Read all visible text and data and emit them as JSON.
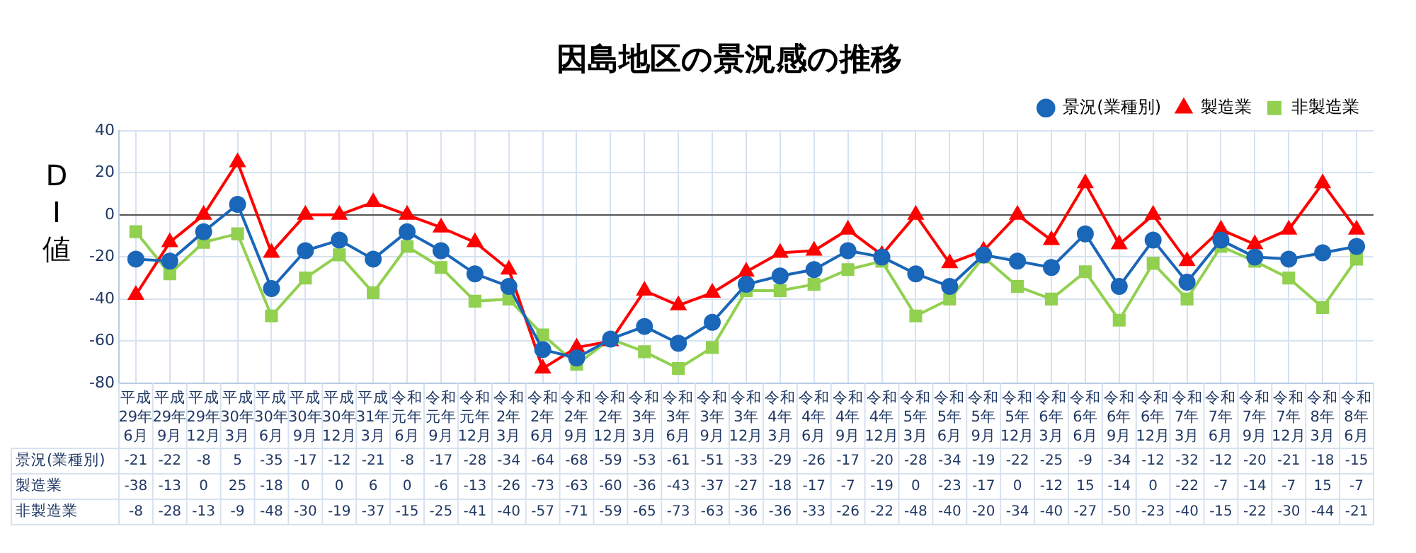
{
  "chart_data": {
    "type": "line",
    "title": "因島地区の景況感の推移",
    "ylabel": "DI値",
    "categories": [
      "平成29年6月",
      "平成29年9月",
      "平成29年12月",
      "平成30年3月",
      "平成30年6月",
      "平成30年9月",
      "平成30年12月",
      "平成31年3月",
      "令和元年6月",
      "令和元年9月",
      "令和元年12月",
      "令和2年3月",
      "令和2年6月",
      "令和2年9月",
      "令和2年12月",
      "令和3年3月",
      "令和3年6月",
      "令和3年9月",
      "令和3年12月",
      "令和4年3月",
      "令和4年6月",
      "令和4年9月",
      "令和4年12月",
      "令和5年3月",
      "令和5年6月",
      "令和5年9月",
      "令和5年12月",
      "令和6年3月",
      "令和6年6月",
      "令和6年9月",
      "令和6年12月",
      "令和7年3月",
      "令和7年6月",
      "令和7年9月",
      "令和7年12月",
      "令和8年3月",
      "令和8年6月"
    ],
    "series": [
      {
        "name": "景況(業種別)",
        "color": "#1a66b8",
        "marker": "circle",
        "values": [
          -21,
          -22,
          -8,
          5,
          -35,
          -17,
          -12,
          -21,
          -8,
          -17,
          -28,
          -34,
          -64,
          -68,
          -59,
          -53,
          -61,
          -51,
          -33,
          -29,
          -26,
          -17,
          -20,
          -28,
          -34,
          -19,
          -22,
          -25,
          -9,
          -34,
          -12,
          -32,
          -12,
          -20,
          -21,
          -18,
          -15
        ]
      },
      {
        "name": "製造業",
        "color": "#ff0000",
        "marker": "triangle",
        "values": [
          -38,
          -13,
          0,
          25,
          -18,
          0,
          0,
          6,
          0,
          -6,
          -13,
          -26,
          -73,
          -63,
          -60,
          -36,
          -43,
          -37,
          -27,
          -18,
          -17,
          -7,
          -19,
          0,
          -23,
          -17,
          0,
          -12,
          15,
          -14,
          0,
          -22,
          -7,
          -14,
          -7,
          15,
          -7
        ]
      },
      {
        "name": "非製造業",
        "color": "#92d050",
        "marker": "square",
        "values": [
          -8,
          -28,
          -13,
          -9,
          -48,
          -30,
          -19,
          -37,
          -15,
          -25,
          -41,
          -40,
          -57,
          -71,
          -59,
          -65,
          -73,
          -63,
          -36,
          -36,
          -33,
          -26,
          -22,
          -48,
          -40,
          -20,
          -34,
          -40,
          -27,
          -50,
          -23,
          -40,
          -15,
          -22,
          -30,
          -44,
          -21
        ]
      }
    ],
    "ylim": [
      -80,
      40
    ],
    "yticks": [
      -80,
      -60,
      -40,
      -20,
      0,
      20,
      40
    ],
    "grid": true,
    "legend": "top right",
    "data_labels": true
  }
}
